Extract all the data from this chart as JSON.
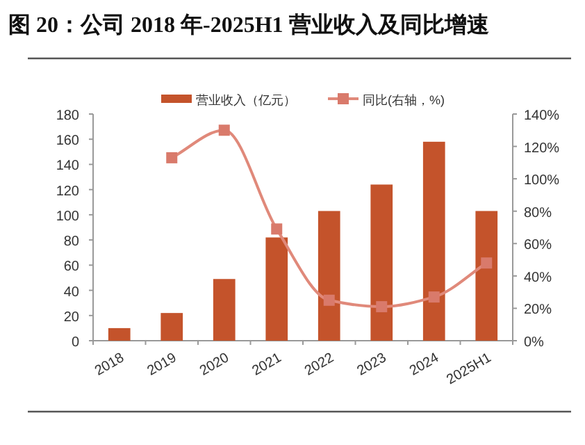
{
  "chart_data": {
    "type": "bar",
    "title": "图 20：公司 2018 年-2025H1 营业收入及同比增速",
    "categories": [
      "2018",
      "2019",
      "2020",
      "2021",
      "2022",
      "2023",
      "2024",
      "2025H1"
    ],
    "series": [
      {
        "name": "营业收入（亿元）",
        "color": "#c4532b",
        "values": [
          10,
          22,
          49,
          82,
          103,
          124,
          158,
          103
        ]
      },
      {
        "name": "同比(右轴，%)",
        "type": "line",
        "axis": "y2",
        "color": "#e0897a",
        "marker": "square",
        "values": [
          null,
          113,
          130,
          69,
          25,
          21,
          27,
          48
        ]
      }
    ],
    "ylim": [
      0,
      180
    ],
    "yticks": [
      0,
      20,
      40,
      60,
      80,
      100,
      120,
      140,
      160,
      180
    ],
    "y2lim": [
      0,
      140
    ],
    "y2ticks": [
      {
        "value": 0,
        "label": "0%"
      },
      {
        "value": 20,
        "label": "20%"
      },
      {
        "value": 40,
        "label": "40%"
      },
      {
        "value": 60,
        "label": "60%"
      },
      {
        "value": 80,
        "label": "80%"
      },
      {
        "value": 100,
        "label": "100%"
      },
      {
        "value": 120,
        "label": "120%"
      },
      {
        "value": 140,
        "label": "140%"
      }
    ],
    "legend": "top",
    "grid": false
  }
}
